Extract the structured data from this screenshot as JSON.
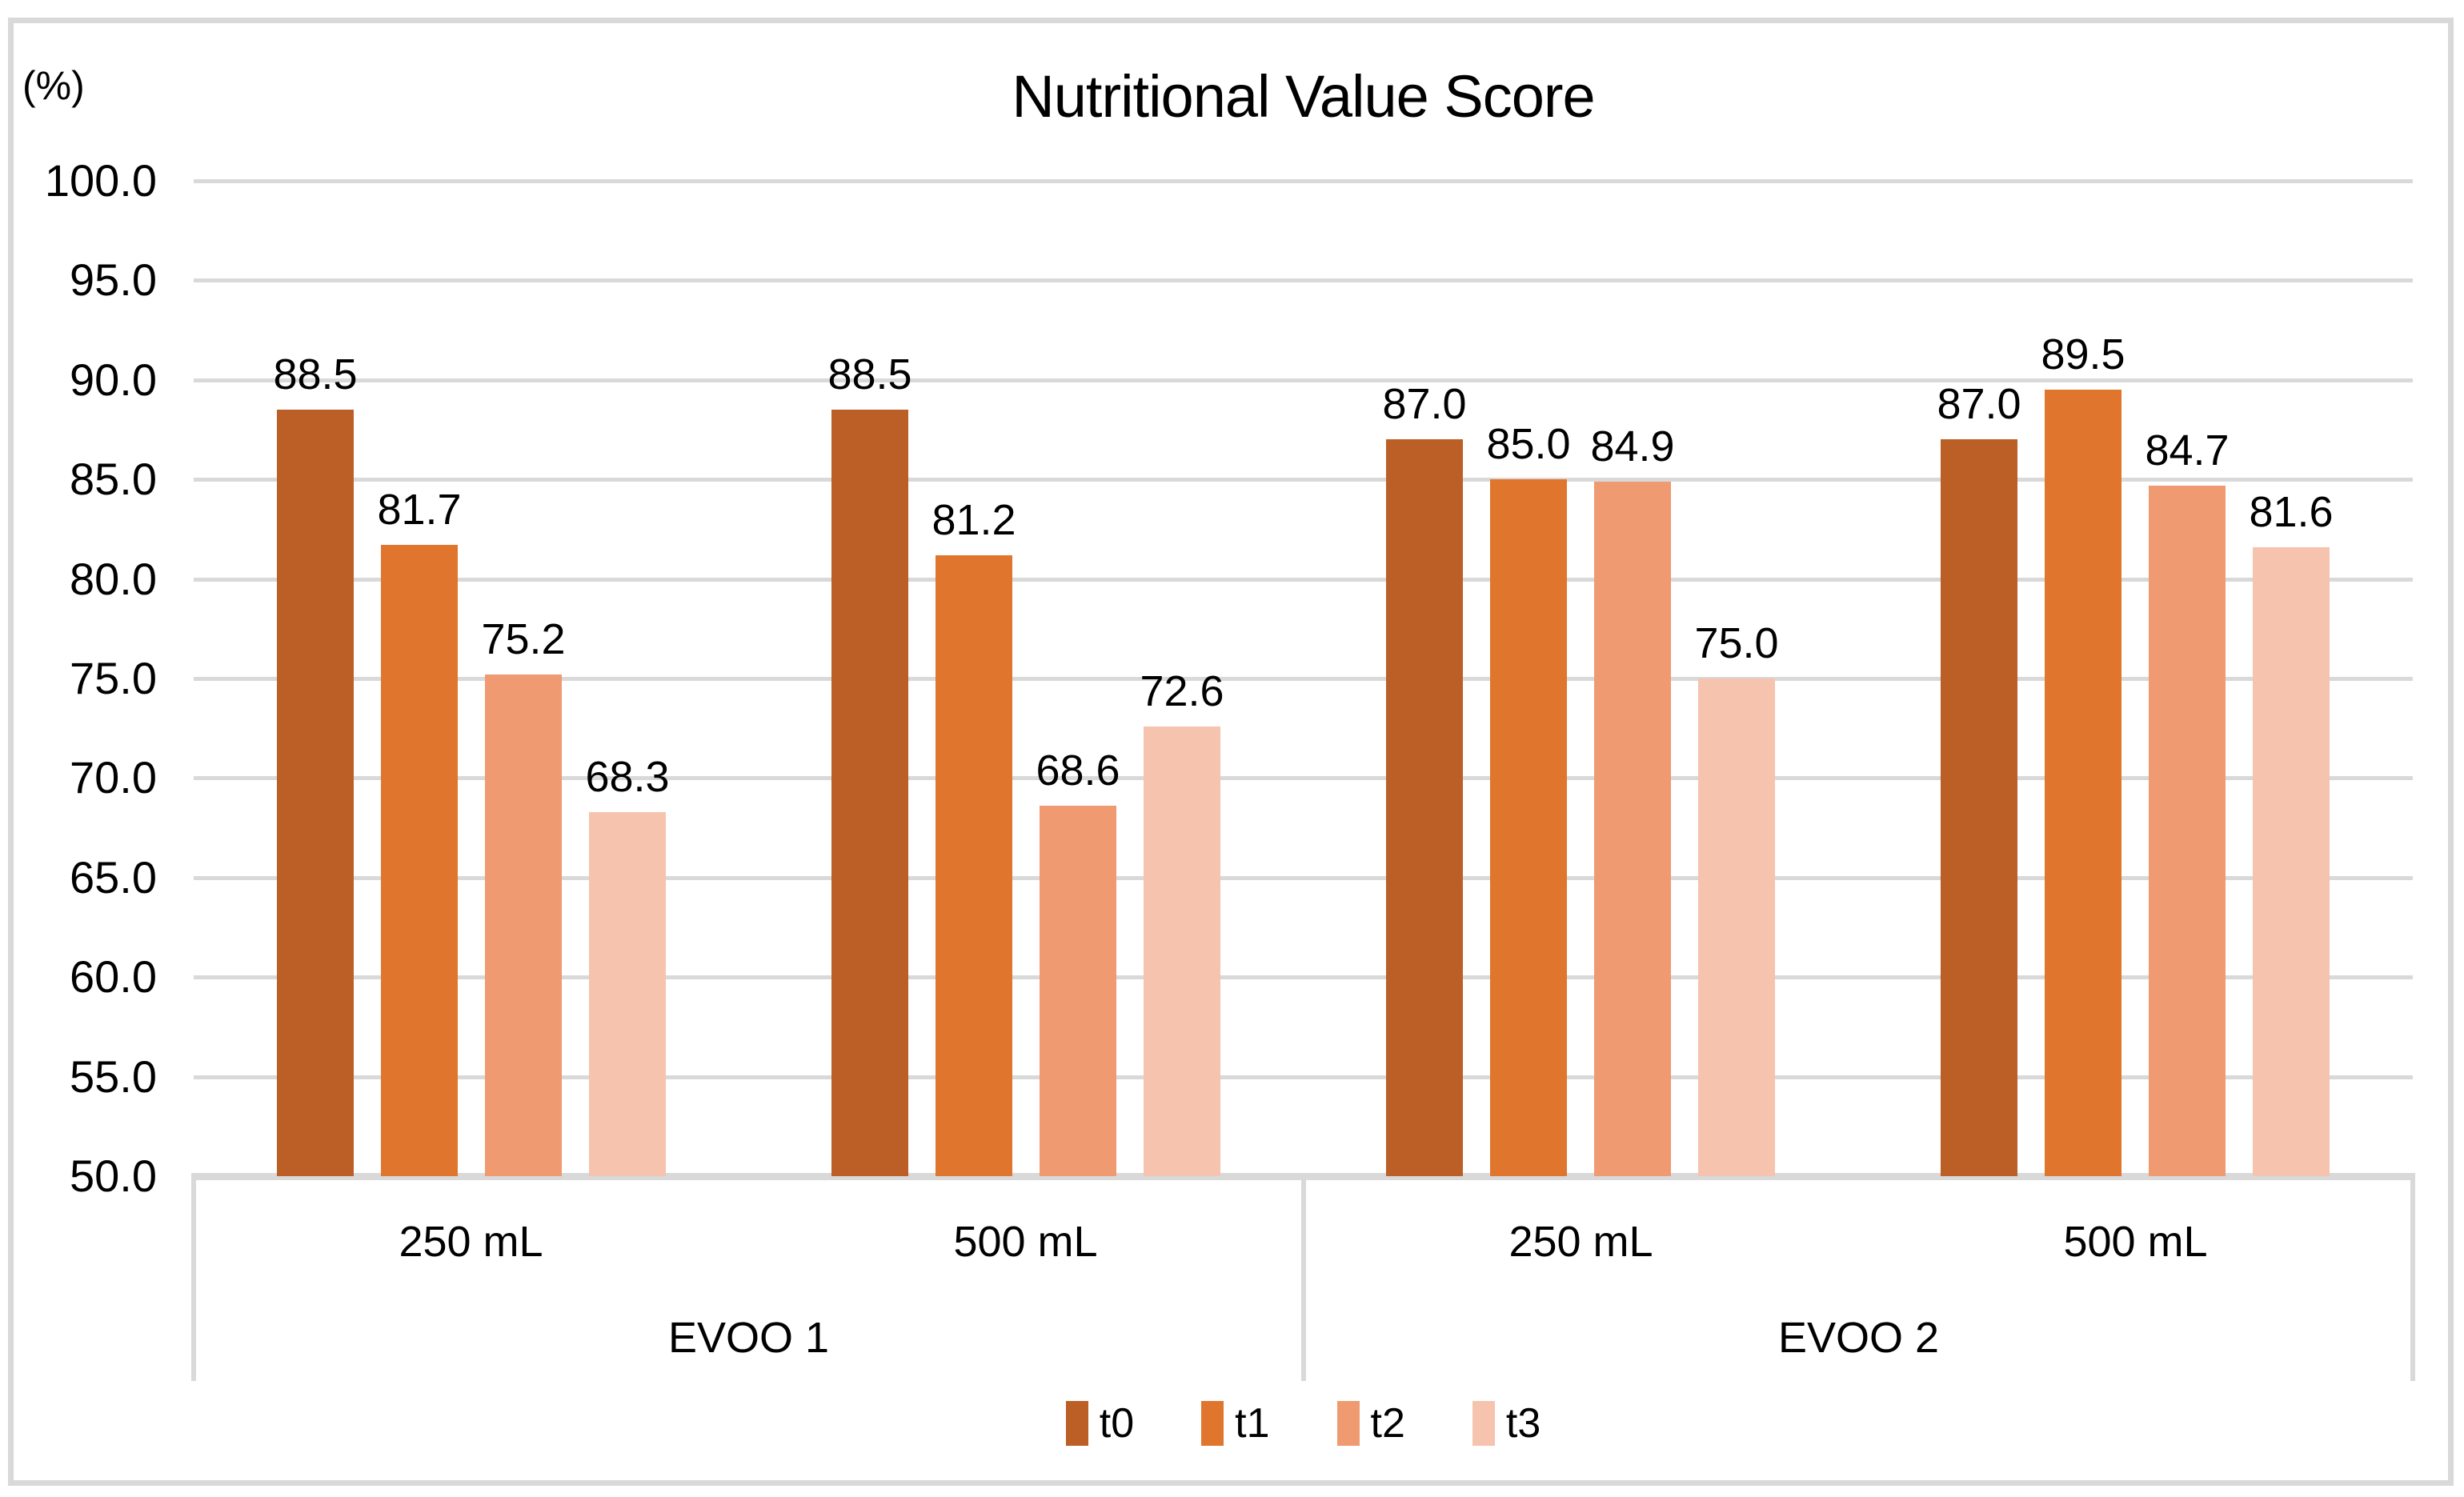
{
  "figure": {
    "background": "#ffffff",
    "border_color": "#d9d9d9"
  },
  "colors": {
    "gridline": "#d9d9d9",
    "axis_line": "#d9d9d9",
    "text": "#000000"
  },
  "chart_data": {
    "type": "bar",
    "title": "Nutritional Value Score",
    "y_axis_unit_label": "(%)",
    "ylabel": "",
    "xlabel": "",
    "ylim": [
      50.0,
      100.0
    ],
    "ytick_step": 5.0,
    "ytick_labels": [
      "100.0",
      "95.0",
      "90.0",
      "85.0",
      "80.0",
      "75.0",
      "70.0",
      "65.0",
      "60.0",
      "55.0",
      "50.0"
    ],
    "grid": true,
    "value_labels": true,
    "value_label_decimals": 1,
    "legend_position": "bottom",
    "categories": [
      "250 mL",
      "500 mL",
      "250 mL",
      "500 mL"
    ],
    "category_groups": [
      {
        "label": "EVOO 1",
        "span": 2
      },
      {
        "label": "EVOO 2",
        "span": 2
      }
    ],
    "series": [
      {
        "name": "t0",
        "color": "#bb5f26",
        "values": [
          88.5,
          88.5,
          87.0,
          87.0
        ]
      },
      {
        "name": "t1",
        "color": "#e0762e",
        "values": [
          81.7,
          81.2,
          85.0,
          89.5
        ]
      },
      {
        "name": "t2",
        "color": "#ef9a70",
        "values": [
          75.2,
          68.6,
          84.9,
          84.7
        ]
      },
      {
        "name": "t3",
        "color": "#f5c3ae",
        "values": [
          68.3,
          72.6,
          75.0,
          81.6
        ]
      }
    ]
  }
}
